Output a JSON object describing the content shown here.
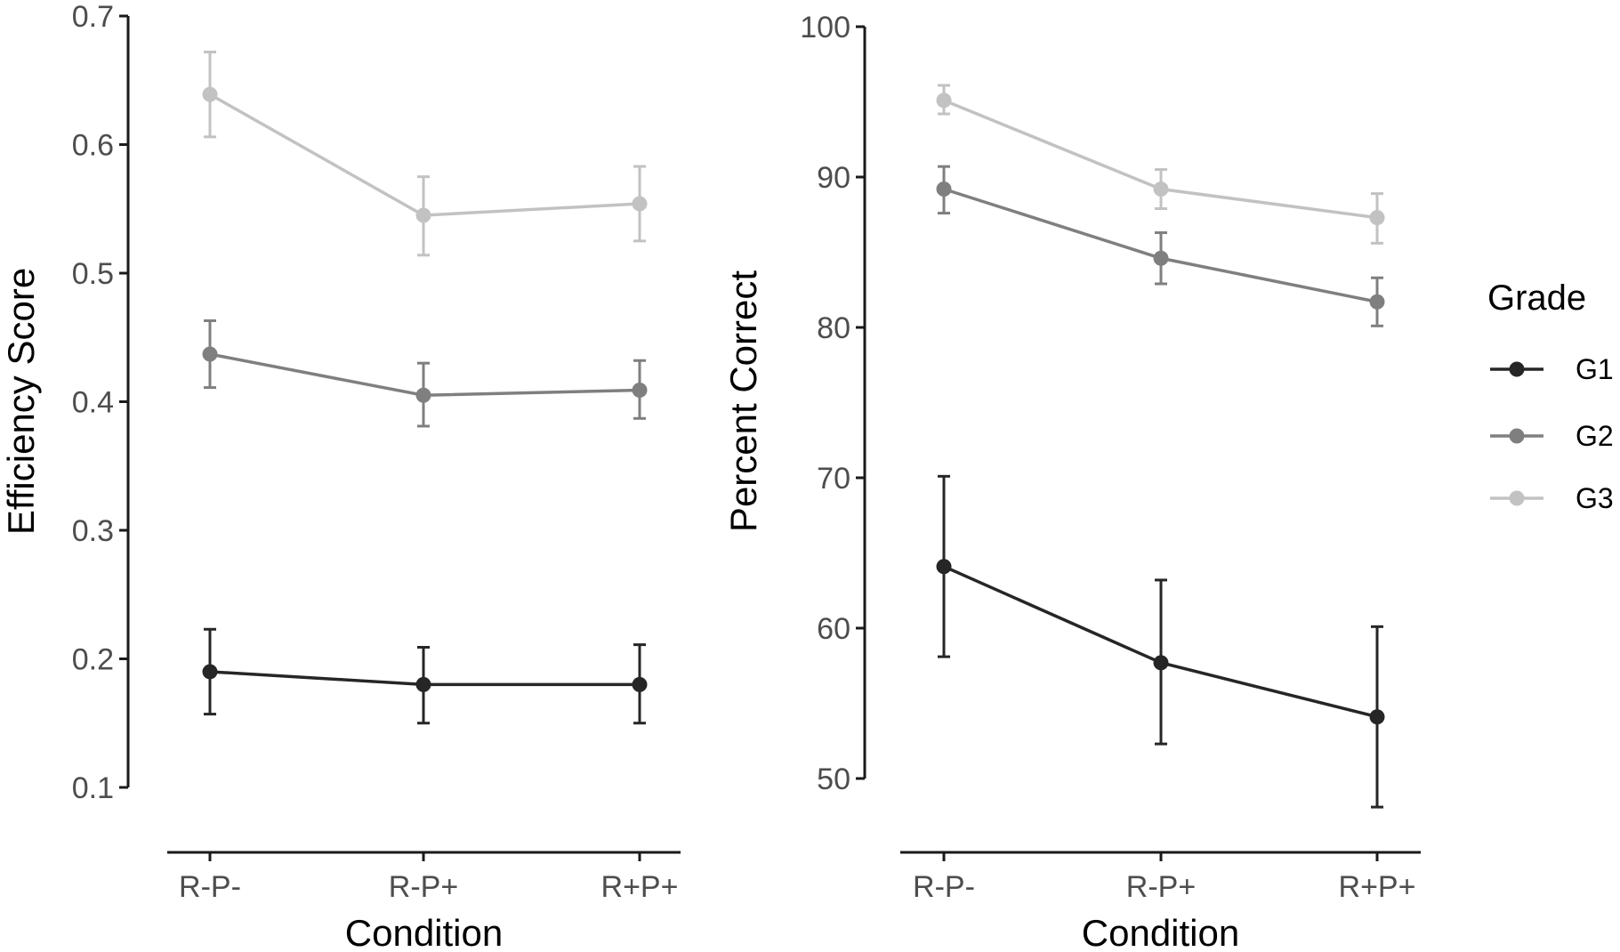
{
  "chart_data": [
    {
      "type": "line",
      "xlabel": "Condition",
      "ylabel": "Efficiency Score",
      "categories": [
        "R-P-",
        "R-P+",
        "R+P+"
      ],
      "ylim": [
        0.1,
        0.7
      ],
      "yticks": [
        "0.1",
        "0.2",
        "0.3",
        "0.4",
        "0.5",
        "0.6",
        "0.7"
      ],
      "series": [
        {
          "name": "G1",
          "values": [
            0.19,
            0.18,
            0.18
          ],
          "err_low": [
            0.157,
            0.15,
            0.15
          ],
          "err_high": [
            0.223,
            0.209,
            0.211
          ]
        },
        {
          "name": "G2",
          "values": [
            0.437,
            0.405,
            0.409
          ],
          "err_low": [
            0.411,
            0.381,
            0.387
          ],
          "err_high": [
            0.463,
            0.43,
            0.432
          ]
        },
        {
          "name": "G3",
          "values": [
            0.639,
            0.545,
            0.554
          ],
          "err_low": [
            0.606,
            0.514,
            0.525
          ],
          "err_high": [
            0.672,
            0.575,
            0.583
          ]
        }
      ]
    },
    {
      "type": "line",
      "xlabel": "Condition",
      "ylabel": "Percent Correct",
      "categories": [
        "R-P-",
        "R-P+",
        "R+P+"
      ],
      "ylim": [
        50,
        100
      ],
      "yticks": [
        "50",
        "60",
        "70",
        "80",
        "90",
        "100"
      ],
      "series": [
        {
          "name": "G1",
          "values": [
            64.1,
            57.7,
            54.1
          ],
          "err_low": [
            58.1,
            52.3,
            48.1
          ],
          "err_high": [
            70.1,
            63.2,
            60.1
          ]
        },
        {
          "name": "G2",
          "values": [
            89.2,
            84.6,
            81.7
          ],
          "err_low": [
            87.6,
            82.9,
            80.1
          ],
          "err_high": [
            90.7,
            86.3,
            83.3
          ]
        },
        {
          "name": "G3",
          "values": [
            95.1,
            89.2,
            87.3
          ],
          "err_low": [
            94.2,
            87.9,
            85.6
          ],
          "err_high": [
            96.1,
            90.5,
            88.9
          ]
        }
      ]
    }
  ],
  "legend": {
    "title": "Grade",
    "items": [
      {
        "name": "G1",
        "color": "#262626"
      },
      {
        "name": "G2",
        "color": "#7f7f7f"
      },
      {
        "name": "G3",
        "color": "#c2c2c2"
      }
    ]
  },
  "colors": {
    "G1": "#262626",
    "G2": "#7f7f7f",
    "G3": "#c2c2c2",
    "axis": "#1a1a1a",
    "tick_text": "#4d4d4d"
  }
}
